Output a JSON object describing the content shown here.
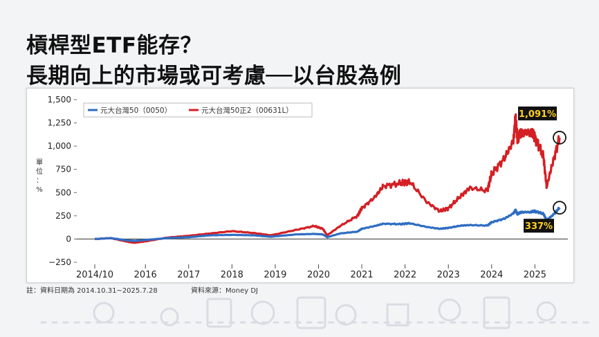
{
  "title": {
    "line1": "槓桿型ETF能存？",
    "line2": "長期向上的市場或可考慮──以台股為例"
  },
  "footnote": {
    "dates": "註：資料日期為 2014.10.31~2025.7.28",
    "source": "資料來源：Money DJ"
  },
  "colors": {
    "series_0050": "#2f6dc3",
    "series_00631L": "#d41f24",
    "callout_bg": "#111111",
    "callout_text": "#ffd21f"
  },
  "chart_data": {
    "type": "line",
    "ylabel": "單位：%",
    "ylim": [
      -250,
      1500
    ],
    "yticks": [
      -250,
      0,
      250,
      500,
      750,
      1000,
      1250,
      1500
    ],
    "ytick_labels": [
      "−250",
      "0",
      "250",
      "500",
      "750",
      "1,000",
      "1,250",
      "1,500"
    ],
    "xlim": [
      2014.83,
      2025.57
    ],
    "xticks": [
      2014.83,
      2016.0,
      2017.0,
      2018.0,
      2019.0,
      2020.0,
      2021.0,
      2022.0,
      2023.0,
      2024.0,
      2025.0
    ],
    "xtick_labels": [
      "2014/10",
      "2016",
      "2017",
      "2018",
      "2019",
      "2020",
      "2021",
      "2022",
      "2023",
      "2024",
      "2025"
    ],
    "grid": false,
    "legend": "top-left",
    "series": [
      {
        "name": "元大台灣50（0050）",
        "x": [
          2014.83,
          2015.2,
          2015.6,
          2015.75,
          2016.0,
          2016.5,
          2017.0,
          2017.5,
          2018.0,
          2018.5,
          2018.9,
          2019.0,
          2019.5,
          2019.9,
          2020.1,
          2020.2,
          2020.5,
          2020.9,
          2021.0,
          2021.3,
          2021.5,
          2021.9,
          2022.1,
          2022.5,
          2022.8,
          2023.0,
          2023.3,
          2023.5,
          2023.9,
          2024.0,
          2024.3,
          2024.5,
          2024.55,
          2024.6,
          2024.7,
          2024.9,
          2025.0,
          2025.2,
          2025.27,
          2025.4,
          2025.57
        ],
        "values": [
          0,
          10,
          -15,
          -20,
          -10,
          10,
          20,
          40,
          45,
          40,
          25,
          30,
          50,
          55,
          50,
          20,
          60,
          80,
          110,
          140,
          165,
          160,
          170,
          130,
          110,
          120,
          145,
          150,
          145,
          180,
          220,
          275,
          310,
          270,
          290,
          290,
          300,
          270,
          205,
          250,
          337
        ]
      },
      {
        "name": "元大台灣50正2（00631L）",
        "x": [
          2014.83,
          2015.2,
          2015.6,
          2015.75,
          2016.0,
          2016.5,
          2017.0,
          2017.5,
          2018.0,
          2018.5,
          2018.9,
          2019.0,
          2019.5,
          2019.9,
          2020.1,
          2020.2,
          2020.5,
          2020.9,
          2021.0,
          2021.3,
          2021.5,
          2021.9,
          2022.1,
          2022.5,
          2022.8,
          2023.0,
          2023.3,
          2023.5,
          2023.9,
          2024.0,
          2024.3,
          2024.5,
          2024.55,
          2024.6,
          2024.7,
          2024.9,
          2025.0,
          2025.2,
          2025.27,
          2025.4,
          2025.57
        ],
        "values": [
          0,
          10,
          -30,
          -40,
          -25,
          15,
          35,
          60,
          85,
          65,
          40,
          50,
          100,
          140,
          110,
          40,
          140,
          250,
          330,
          450,
          570,
          600,
          620,
          400,
          300,
          330,
          470,
          550,
          520,
          700,
          870,
          1050,
          1300,
          1080,
          1150,
          1150,
          1100,
          880,
          560,
          800,
          1091
        ]
      }
    ],
    "annotations": [
      {
        "series": "元大台灣50正2（00631L）",
        "label": "1,091%",
        "x": 2025.57,
        "y": 1091
      },
      {
        "series": "元大台灣50（0050）",
        "label": "337%",
        "x": 2025.57,
        "y": 337
      }
    ]
  }
}
